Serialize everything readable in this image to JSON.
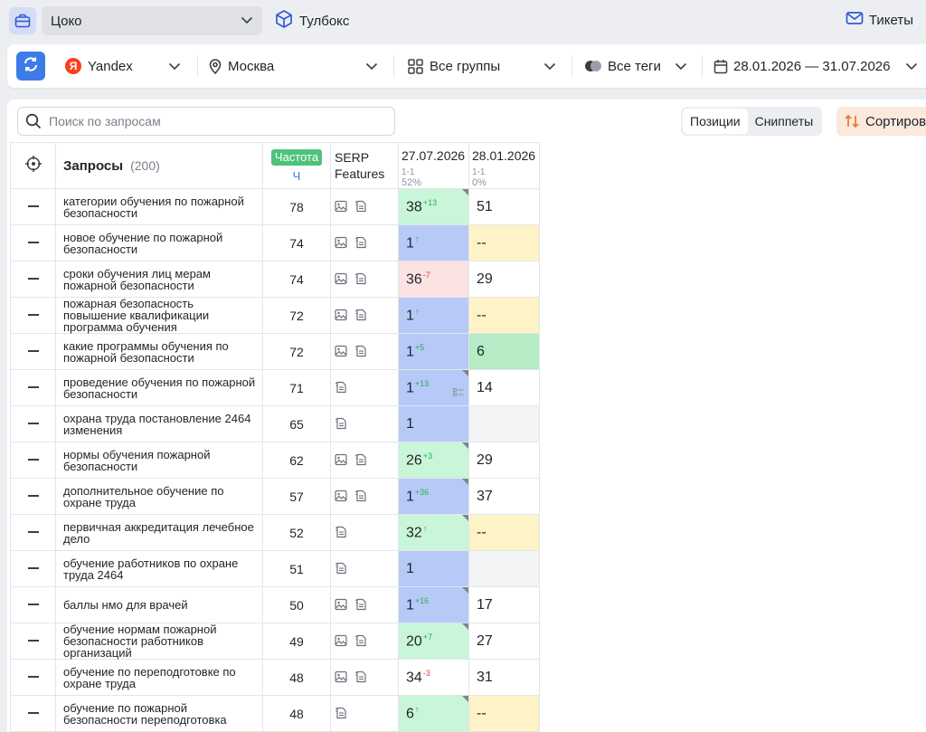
{
  "topbar": {
    "project": "Цоко",
    "toolbox": "Тулбокс",
    "tickets": "Тикеты"
  },
  "filters": {
    "engine": "Yandex",
    "region": "Москва",
    "groups": "Все группы",
    "tags": "Все теги",
    "date_range": "28.01.2026 — 31.07.2026"
  },
  "toolbar": {
    "search_placeholder": "Поиск по запросам",
    "tab_positions": "Позиции",
    "tab_snippets": "Сниппеты",
    "sort_label": "Сортиров"
  },
  "table": {
    "header": {
      "queries": "Запросы",
      "count": "(200)",
      "freq_badge": "Частота",
      "freq_sub": "Ч",
      "serp_line1": "SERP",
      "serp_line2": "Features",
      "date1": "27.07.2026",
      "date1_range": "1-1",
      "date1_pct": "52%",
      "date2": "28.01.2026",
      "date2_range": "1-1",
      "date2_pct": "0%"
    },
    "rows": [
      {
        "query": "категории обучения по пожарной безопасности",
        "freq": "78",
        "serp_img": true,
        "pos1": "38",
        "delta": "13",
        "dir": "up",
        "color1": "green",
        "corner": true,
        "snip": false,
        "pos2": "51",
        "color2": "white"
      },
      {
        "query": "новое обучение по пожарной безопасности",
        "freq": "74",
        "serp_img": true,
        "pos1": "1",
        "delta": "",
        "dir": "up",
        "color1": "blue",
        "corner": false,
        "snip": false,
        "pos2": "--",
        "color2": "yellow"
      },
      {
        "query": "сроки обучения лиц мерам пожарной безопасности",
        "freq": "74",
        "serp_img": true,
        "pos1": "36",
        "delta": "7",
        "dir": "down",
        "color1": "red",
        "corner": false,
        "snip": false,
        "pos2": "29",
        "color2": "white"
      },
      {
        "query": "пожарная безопасность повышение квалификации программа обучения",
        "freq": "72",
        "serp_img": true,
        "pos1": "1",
        "delta": "",
        "dir": "up",
        "color1": "blue",
        "corner": false,
        "snip": false,
        "pos2": "--",
        "color2": "yellow"
      },
      {
        "query": "какие программы обучения по пожарной безопасности",
        "freq": "72",
        "serp_img": true,
        "pos1": "1",
        "delta": "5",
        "dir": "up",
        "color1": "blue",
        "corner": false,
        "snip": false,
        "pos2": "6",
        "color2": "green2"
      },
      {
        "query": "проведение обучения по пожарной безопасности",
        "freq": "71",
        "serp_img": false,
        "pos1": "1",
        "delta": "13",
        "dir": "up",
        "color1": "blue",
        "corner": true,
        "snip": true,
        "pos2": "14",
        "color2": "white"
      },
      {
        "query": "охрана труда постановление 2464 изменения",
        "freq": "65",
        "serp_img": false,
        "pos1": "1",
        "delta": "",
        "dir": "",
        "color1": "blue",
        "corner": false,
        "snip": false,
        "pos2": "",
        "color2": "gray"
      },
      {
        "query": "нормы обучения пожарной безопасности",
        "freq": "62",
        "serp_img": true,
        "pos1": "26",
        "delta": "3",
        "dir": "up",
        "color1": "green",
        "corner": true,
        "snip": false,
        "pos2": "29",
        "color2": "white"
      },
      {
        "query": "дополнительное обучение по охране труда",
        "freq": "57",
        "serp_img": true,
        "pos1": "1",
        "delta": "36",
        "dir": "up",
        "color1": "blue",
        "corner": true,
        "snip": false,
        "pos2": "37",
        "color2": "white"
      },
      {
        "query": "первичная аккредитация лечебное дело",
        "freq": "52",
        "serp_img": false,
        "pos1": "32",
        "delta": "",
        "dir": "up",
        "color1": "green",
        "corner": true,
        "snip": false,
        "pos2": "--",
        "color2": "yellow"
      },
      {
        "query": "обучение работников по охране труда 2464",
        "freq": "51",
        "serp_img": false,
        "pos1": "1",
        "delta": "",
        "dir": "",
        "color1": "blue",
        "corner": false,
        "snip": false,
        "pos2": "",
        "color2": "gray"
      },
      {
        "query": "баллы нмо для врачей",
        "freq": "50",
        "serp_img": true,
        "pos1": "1",
        "delta": "16",
        "dir": "up",
        "color1": "blue",
        "corner": true,
        "snip": false,
        "pos2": "17",
        "color2": "white"
      },
      {
        "query": "обучение нормам пожарной безопасности работников организаций",
        "freq": "49",
        "serp_img": true,
        "pos1": "20",
        "delta": "7",
        "dir": "up",
        "color1": "green",
        "corner": true,
        "snip": false,
        "pos2": "27",
        "color2": "white"
      },
      {
        "query": "обучение по переподготовке по охране труда",
        "freq": "48",
        "serp_img": true,
        "pos1": "34",
        "delta": "3",
        "dir": "down",
        "color1": "white",
        "corner": false,
        "snip": false,
        "pos2": "31",
        "color2": "white"
      },
      {
        "query": "обучение по пожарной безопасности переподготовка",
        "freq": "48",
        "serp_img": false,
        "pos1": "6",
        "delta": "",
        "dir": "up",
        "color1": "green",
        "corner": true,
        "snip": false,
        "pos2": "--",
        "color2": "yellow"
      },
      {
        "query": "",
        "freq": "",
        "serp_img": false,
        "pos1": "",
        "delta": "",
        "dir": "",
        "color1": "green",
        "corner": true,
        "snip": false,
        "pos2": "",
        "color2": "yellow"
      }
    ]
  },
  "colors": {
    "blue": "#b7c9f7",
    "green": "#c9f5d8",
    "green2": "#b5ecc5",
    "red": "#fbe3e3",
    "yellow": "#fdf3c6",
    "gray": "#f3f4f6",
    "accent": "#3d7be8",
    "freq_badge": "#4fc27a"
  }
}
